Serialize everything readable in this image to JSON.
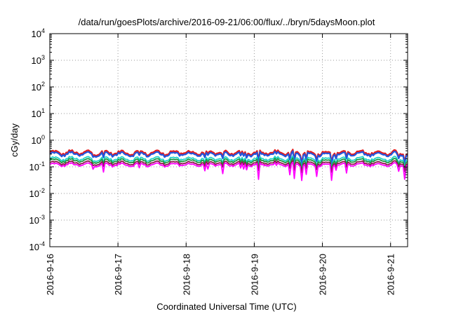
{
  "chart_data": {
    "type": "line",
    "title": "/data/run/goesPlots/archive/2016-09-21/06:00/flux/../bryn/5daysMoon.plot",
    "xlabel": "Coordinated Universal Time (UTC)",
    "ylabel": "cGy/day",
    "yscale": "log",
    "ylim": [
      0.0001,
      10000
    ],
    "xlim": [
      "2016-09-16T00:00",
      "2016-09-21T06:00"
    ],
    "grid": true,
    "y_ticks": [
      {
        "value": 0.0001,
        "base": "10",
        "exp": "-4"
      },
      {
        "value": 0.001,
        "base": "10",
        "exp": "-3"
      },
      {
        "value": 0.01,
        "base": "10",
        "exp": "-2"
      },
      {
        "value": 0.1,
        "base": "10",
        "exp": "-1"
      },
      {
        "value": 1,
        "base": "10",
        "exp": "0"
      },
      {
        "value": 10,
        "base": "10",
        "exp": "1"
      },
      {
        "value": 100,
        "base": "10",
        "exp": "2"
      },
      {
        "value": 1000,
        "base": "10",
        "exp": "3"
      },
      {
        "value": 10000,
        "base": "10",
        "exp": "4"
      }
    ],
    "x_ticks": [
      {
        "value": "2016-09-16T00:00",
        "label": "2016-9-16"
      },
      {
        "value": "2016-09-17T00:00",
        "label": "2016-9-17"
      },
      {
        "value": "2016-09-18T00:00",
        "label": "2016-9-18"
      },
      {
        "value": "2016-09-19T00:00",
        "label": "2016-9-19"
      },
      {
        "value": "2016-09-20T00:00",
        "label": "2016-9-20"
      },
      {
        "value": "2016-09-21T00:00",
        "label": "2016-9-21"
      }
    ],
    "series": [
      {
        "color": "#e41a1c",
        "level": 0.34,
        "dip_min": 0.16
      },
      {
        "color": "#2255dd",
        "level": 0.3,
        "dip_min": 0.13
      },
      {
        "color": "#22d3c8",
        "level": 0.2,
        "dip_min": 0.09
      },
      {
        "color": "#1a9641",
        "level": 0.17,
        "dip_min": 0.08
      },
      {
        "color": "#8b1a4a",
        "level": 0.14,
        "dip_min": 0.065
      },
      {
        "color": "#ff00ff",
        "level": 0.12,
        "dip_min": 0.03
      }
    ]
  }
}
